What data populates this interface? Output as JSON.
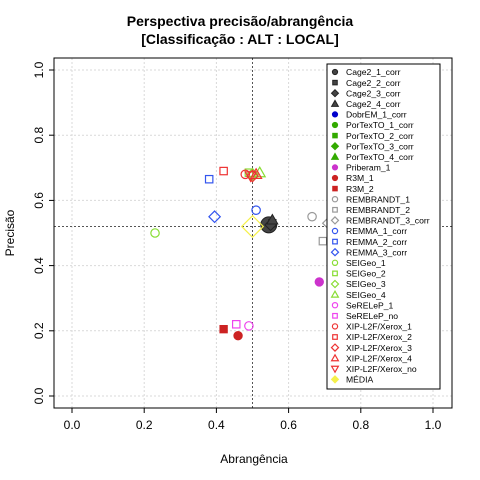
{
  "chart_data": {
    "type": "scatter",
    "title": [
      "Perspectiva precisão/abrangência",
      "[Classificação : ALT : LOCAL]"
    ],
    "xlabel": "Abrangência",
    "ylabel": "Precisão",
    "xlim": [
      0,
      1
    ],
    "ylim": [
      0,
      1
    ],
    "xticks": [
      "0.0",
      "0.2",
      "0.4",
      "0.6",
      "0.8",
      "1.0"
    ],
    "yticks": [
      "0.0",
      "0.2",
      "0.4",
      "0.6",
      "0.8",
      "1.0"
    ],
    "grid": true,
    "legend_position": "right",
    "reference_lines": {
      "x": 0.5,
      "y": 0.52
    },
    "series": [
      {
        "name": "Cage2_1_corr",
        "marker": "circle",
        "color": "#444444",
        "filled": true,
        "x": 0.545,
        "y": 0.525,
        "big": true
      },
      {
        "name": "Cage2_2_corr",
        "marker": "square",
        "color": "#444444",
        "filled": true,
        "x": 0.555,
        "y": 0.53
      },
      {
        "name": "Cage2_3_corr",
        "marker": "diamond",
        "color": "#444444",
        "filled": true,
        "x": 0.55,
        "y": 0.525
      },
      {
        "name": "Cage2_4_corr",
        "marker": "triangle",
        "color": "#444444",
        "filled": true,
        "x": 0.555,
        "y": 0.54
      },
      {
        "name": "DobrEM_1_corr",
        "marker": "circle",
        "color": "#0000cc",
        "filled": true,
        "x": null,
        "y": null
      },
      {
        "name": "PorTexTO_1_corr",
        "marker": "circle",
        "color": "#33aa00",
        "filled": true,
        "x": null,
        "y": null
      },
      {
        "name": "PorTexTO_2_corr",
        "marker": "square",
        "color": "#33aa00",
        "filled": true,
        "x": null,
        "y": null
      },
      {
        "name": "PorTexTO_3_corr",
        "marker": "diamond",
        "color": "#33aa00",
        "filled": true,
        "x": null,
        "y": null
      },
      {
        "name": "PorTexTO_4_corr",
        "marker": "triangle",
        "color": "#33aa00",
        "filled": true,
        "x": null,
        "y": null
      },
      {
        "name": "Priberam_1",
        "marker": "circle",
        "color": "#cc33cc",
        "filled": true,
        "x": 0.685,
        "y": 0.35
      },
      {
        "name": "R3M_1",
        "marker": "circle",
        "color": "#cc2222",
        "filled": true,
        "x": 0.46,
        "y": 0.185
      },
      {
        "name": "R3M_2",
        "marker": "square",
        "color": "#cc2222",
        "filled": true,
        "x": 0.42,
        "y": 0.205
      },
      {
        "name": "REMBRANDT_1",
        "marker": "circle",
        "color": "#999999",
        "filled": false,
        "x": 0.665,
        "y": 0.55
      },
      {
        "name": "REMBRANDT_2",
        "marker": "square",
        "color": "#999999",
        "filled": false,
        "x": 0.695,
        "y": 0.475
      },
      {
        "name": "REMBRANDT_3_corr",
        "marker": "diamond",
        "color": "#999999",
        "filled": false,
        "x": 0.71,
        "y": 0.53
      },
      {
        "name": "REMMA_1_corr",
        "marker": "circle",
        "color": "#3355ee",
        "filled": false,
        "x": 0.51,
        "y": 0.57
      },
      {
        "name": "REMMA_2_corr",
        "marker": "square",
        "color": "#3355ee",
        "filled": false,
        "x": 0.38,
        "y": 0.665
      },
      {
        "name": "REMMA_3_corr",
        "marker": "diamond",
        "color": "#3355ee",
        "filled": false,
        "x": 0.395,
        "y": 0.55
      },
      {
        "name": "SEIGeo_1",
        "marker": "circle",
        "color": "#88dd33",
        "filled": false,
        "x": 0.23,
        "y": 0.5
      },
      {
        "name": "SEIGeo_2",
        "marker": "square",
        "color": "#88dd33",
        "filled": false,
        "x": 0.49,
        "y": 0.685
      },
      {
        "name": "SEIGeo_3",
        "marker": "diamond",
        "color": "#88dd33",
        "filled": false,
        "x": 0.5,
        "y": 0.68
      },
      {
        "name": "SEIGeo_4",
        "marker": "triangle",
        "color": "#88dd33",
        "filled": false,
        "x": 0.52,
        "y": 0.685
      },
      {
        "name": "SeRELeP_1",
        "marker": "circle",
        "color": "#ee44ee",
        "filled": false,
        "x": 0.49,
        "y": 0.215
      },
      {
        "name": "SeRELeP_no",
        "marker": "square",
        "color": "#ee44ee",
        "filled": false,
        "x": 0.455,
        "y": 0.22
      },
      {
        "name": "XIP-L2F/Xerox_1",
        "marker": "circle",
        "color": "#ee3333",
        "filled": false,
        "x": 0.48,
        "y": 0.68
      },
      {
        "name": "XIP-L2F/Xerox_2",
        "marker": "square",
        "color": "#ee3333",
        "filled": false,
        "x": 0.42,
        "y": 0.69
      },
      {
        "name": "XIP-L2F/Xerox_3",
        "marker": "diamond",
        "color": "#ee3333",
        "filled": false,
        "x": 0.5,
        "y": 0.675
      },
      {
        "name": "XIP-L2F/Xerox_4",
        "marker": "triangle",
        "color": "#ee3333",
        "filled": false,
        "x": 0.51,
        "y": 0.68
      },
      {
        "name": "XIP-L2F/Xerox_no",
        "marker": "triangle-down",
        "color": "#ee3333",
        "filled": false,
        "x": 0.495,
        "y": 0.675
      },
      {
        "name": "MÉDIA",
        "marker": "diamond",
        "color": "#f5f04a",
        "filled": false,
        "x": 0.5,
        "y": 0.52,
        "big": true
      }
    ]
  }
}
